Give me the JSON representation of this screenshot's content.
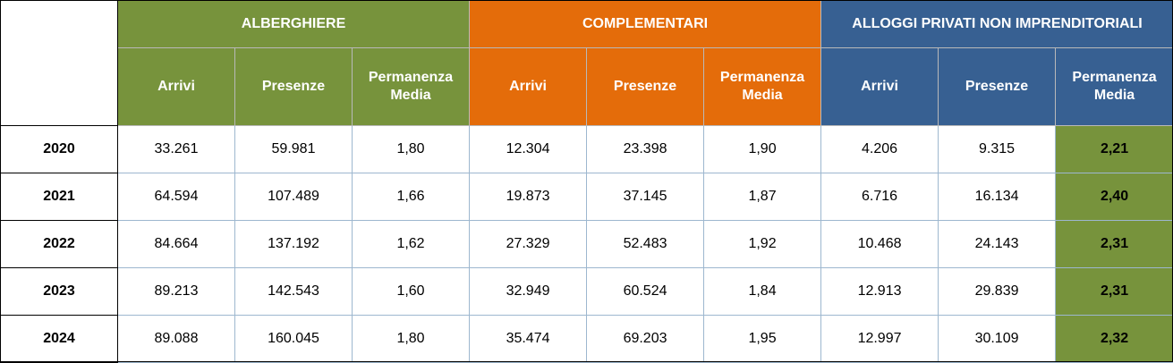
{
  "groups": {
    "alberghiere": "ALBERGHIERE",
    "complementari": "COMPLEMENTARI",
    "alloggi": "ALLOGGI PRIVATI NON IMPRENDITORIALI"
  },
  "columns": {
    "arrivi": "Arrivi",
    "presenze": "Presenze",
    "permanenza_line1": "Permanenza",
    "permanenza_line2": "Media"
  },
  "colors": {
    "green": "#77933c",
    "orange": "#e46c0a",
    "blue": "#376092"
  },
  "rows": [
    {
      "year": "2020",
      "alb_arrivi": "33.261",
      "alb_presenze": "59.981",
      "alb_perm": "1,80",
      "comp_arrivi": "12.304",
      "comp_presenze": "23.398",
      "comp_perm": "1,90",
      "all_arrivi": "4.206",
      "all_presenze": "9.315",
      "all_perm": "2,21"
    },
    {
      "year": "2021",
      "alb_arrivi": "64.594",
      "alb_presenze": "107.489",
      "alb_perm": "1,66",
      "comp_arrivi": "19.873",
      "comp_presenze": "37.145",
      "comp_perm": "1,87",
      "all_arrivi": "6.716",
      "all_presenze": "16.134",
      "all_perm": "2,40"
    },
    {
      "year": "2022",
      "alb_arrivi": "84.664",
      "alb_presenze": "137.192",
      "alb_perm": "1,62",
      "comp_arrivi": "27.329",
      "comp_presenze": "52.483",
      "comp_perm": "1,92",
      "all_arrivi": "10.468",
      "all_presenze": "24.143",
      "all_perm": "2,31"
    },
    {
      "year": "2023",
      "alb_arrivi": "89.213",
      "alb_presenze": "142.543",
      "alb_perm": "1,60",
      "comp_arrivi": "32.949",
      "comp_presenze": "60.524",
      "comp_perm": "1,84",
      "all_arrivi": "12.913",
      "all_presenze": "29.839",
      "all_perm": "2,31"
    },
    {
      "year": "2024",
      "alb_arrivi": "89.088",
      "alb_presenze": "160.045",
      "alb_perm": "1,80",
      "comp_arrivi": "35.474",
      "comp_presenze": "69.203",
      "comp_perm": "1,95",
      "all_arrivi": "12.997",
      "all_presenze": "30.109",
      "all_perm": "2,32"
    }
  ]
}
